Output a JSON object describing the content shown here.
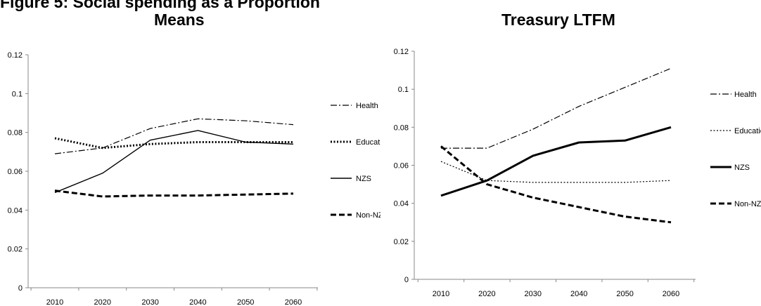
{
  "page": {
    "caption": "Figure 5: Social spending as a Proportion"
  },
  "chart_data": [
    {
      "type": "line",
      "title": "Means",
      "xlabel": "",
      "ylabel": "",
      "x": [
        2010,
        2020,
        2030,
        2040,
        2050,
        2060
      ],
      "ylim": [
        0,
        0.12
      ],
      "yticks": [
        "0",
        "0.02",
        "0.04",
        "0.06",
        "0.08",
        "0.1",
        "0.12"
      ],
      "grid": false,
      "legend": "right",
      "series": [
        {
          "name": "Health",
          "dash": "dashdot",
          "width": 1.2,
          "values": [
            0.069,
            0.072,
            0.082,
            0.087,
            0.086,
            0.084
          ]
        },
        {
          "name": "Educat",
          "dash": "dotted",
          "width": 3,
          "values": [
            0.077,
            0.072,
            0.074,
            0.075,
            0.075,
            0.075
          ]
        },
        {
          "name": "NZS",
          "dash": "solid",
          "width": 1.4,
          "values": [
            0.049,
            0.059,
            0.076,
            0.081,
            0.075,
            0.074
          ]
        },
        {
          "name": "Non-NZ",
          "dash": "dashed",
          "width": 3,
          "values": [
            0.05,
            0.047,
            0.0475,
            0.0475,
            0.048,
            0.0485
          ]
        }
      ]
    },
    {
      "type": "line",
      "title": "Treasury LTFM",
      "xlabel": "",
      "ylabel": "",
      "x": [
        2010,
        2020,
        2030,
        2040,
        2050,
        2060
      ],
      "ylim": [
        0,
        0.12
      ],
      "yticks": [
        "0",
        "0.02",
        "0.04",
        "0.06",
        "0.08",
        "0.1",
        "0.12"
      ],
      "grid": false,
      "legend": "right",
      "series": [
        {
          "name": "Health",
          "dash": "dashdot",
          "width": 1.2,
          "values": [
            0.069,
            0.069,
            0.079,
            0.091,
            0.101,
            0.111
          ]
        },
        {
          "name": "Educatio",
          "dash": "dotted",
          "width": 1.2,
          "values": [
            0.062,
            0.052,
            0.051,
            0.051,
            0.051,
            0.052
          ]
        },
        {
          "name": "NZS",
          "dash": "solid",
          "width": 3,
          "values": [
            0.044,
            0.052,
            0.065,
            0.072,
            0.073,
            0.08
          ]
        },
        {
          "name": "Non-NZS",
          "dash": "dashed",
          "width": 3,
          "values": [
            0.07,
            0.05,
            0.043,
            0.038,
            0.033,
            0.03
          ]
        }
      ]
    }
  ]
}
